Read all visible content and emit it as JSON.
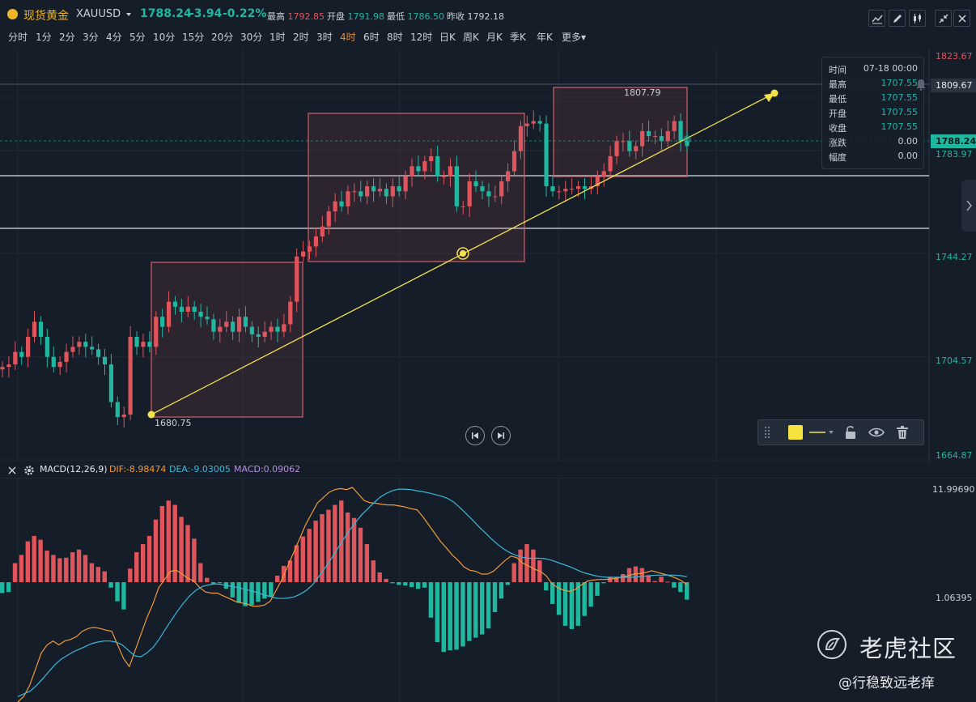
{
  "header": {
    "name": "现货黄金",
    "symbol": "XAUUSD",
    "price": "1788.24",
    "change": "-3.94",
    "percent": "-0.22%",
    "high_label": "最高",
    "high": "1792.85",
    "open_label": "开盘",
    "open": "1791.98",
    "low_label": "最低",
    "low": "1786.50",
    "prev_label": "昨收",
    "prev": "1792.18"
  },
  "timeframes": [
    "分时",
    "1分",
    "2分",
    "3分",
    "4分",
    "5分",
    "10分",
    "15分",
    "20分",
    "30分",
    "1时",
    "2时",
    "3时",
    "4时",
    "6时",
    "8时",
    "12时",
    "日K",
    "周K",
    "月K",
    "季K",
    "年K",
    "更多"
  ],
  "active_timeframe": "4时",
  "tooltip": {
    "rows": [
      {
        "k": "时间",
        "v": "07-18 00:00"
      },
      {
        "k": "最高",
        "v": "1707.55"
      },
      {
        "k": "最低",
        "v": "1707.55"
      },
      {
        "k": "开盘",
        "v": "1707.55"
      },
      {
        "k": "收盘",
        "v": "1707.55"
      },
      {
        "k": "涨跌",
        "v": "0.00"
      },
      {
        "k": "幅度",
        "v": "0.00"
      }
    ]
  },
  "price_axis": {
    "top": "1823.67",
    "crosshair": "1809.67",
    "current": "1788.24",
    "l1": "1783.97",
    "l2": "1744.27",
    "l3": "1704.57",
    "bottom": "1664.87"
  },
  "annotations": {
    "low_mark": "1680.75",
    "high_mark": "1807.79"
  },
  "macd": {
    "title": "MACD(12,26,9)",
    "dif": "DIF:-8.98474",
    "dea": "DEA:-9.03005",
    "macd": "MACD:0.09062",
    "axis_top": "11.99690",
    "axis_mid": "1.06395"
  },
  "watermark": {
    "brand": "老虎社区",
    "user": "@行稳致远老痒"
  },
  "colors": {
    "up": "#e0555c",
    "down": "#1fb7a0",
    "dif": "#f29a3b",
    "dea": "#3bb8d9",
    "trendline": "#f2e14c",
    "box_border": "#d2626a"
  },
  "chart_data": {
    "type": "candlestick",
    "price_ylim": [
      1664.87,
      1823.67
    ],
    "closes": [
      1700,
      1701,
      1706,
      1704,
      1712,
      1718,
      1712,
      1704,
      1700,
      1702,
      1706,
      1708,
      1710,
      1708,
      1707,
      1704,
      1701,
      1686,
      1680,
      1681,
      1712,
      1708,
      1710,
      1708,
      1720,
      1716,
      1726,
      1724,
      1722,
      1724,
      1722,
      1720,
      1719,
      1714,
      1716,
      1718,
      1714,
      1720,
      1716,
      1713,
      1712,
      1714,
      1716,
      1714,
      1717,
      1726,
      1744,
      1746,
      1748,
      1752,
      1756,
      1762,
      1766,
      1764,
      1770,
      1770,
      1768,
      1772,
      1770,
      1771,
      1768,
      1772,
      1770,
      1776,
      1780,
      1778,
      1782,
      1784,
      1776,
      1776,
      1780,
      1764,
      1764,
      1774,
      1772,
      1770,
      1768,
      1768,
      1774,
      1778,
      1786,
      1796,
      1797,
      1798,
      1797,
      1772,
      1770,
      1770,
      1771,
      1771,
      1772,
      1771,
      1772,
      1776,
      1778,
      1784,
      1790,
      1790,
      1786,
      1788,
      1794,
      1792,
      1792,
      1790,
      1794,
      1798,
      1790,
      1788
    ],
    "macd_ylim": [
      -22,
      18
    ],
    "macd_hist": [
      -2.0,
      -1.8,
      3.5,
      5.0,
      7.5,
      8.5,
      7.8,
      5.8,
      5.0,
      4.4,
      4.5,
      5.5,
      6.0,
      5.0,
      3.5,
      2.8,
      2.0,
      -1.0,
      -3.5,
      -5.0,
      2.5,
      5.5,
      7.0,
      8.5,
      11.5,
      14.0,
      15.0,
      14.2,
      12.0,
      10.5,
      8.0,
      3.5,
      0.8,
      -0.3,
      -0.2,
      -1.2,
      -2.8,
      -3.8,
      -4.4,
      -4.2,
      -3.6,
      -3.0,
      -2.6,
      1.2,
      3.0,
      4.0,
      6.8,
      8.4,
      9.8,
      11.3,
      12.5,
      13.3,
      14.2,
      15.0,
      12.8,
      11.8,
      10.0,
      7.0,
      4.0,
      1.8,
      0.6,
      -0.2,
      -0.5,
      -0.6,
      -0.9,
      -1.2,
      -1.0,
      -6.5,
      -11.0,
      -12.8,
      -12.5,
      -12.4,
      -11.8,
      -10.8,
      -10.2,
      -9.6,
      -8.5,
      -5.5,
      -3.0,
      -0.5,
      3.5,
      6.0,
      7.0,
      6.0,
      4.0,
      -1.5,
      -4.0,
      -6.0,
      -8.0,
      -8.6,
      -8.0,
      -6.2,
      -4.5,
      -2.5,
      -0.2,
      1.0,
      1.0,
      1.5,
      2.6,
      2.9,
      2.6,
      1.3,
      0.2,
      1.0,
      0.1,
      -1.0,
      -1.8,
      -3.2
    ],
    "dif": [
      -22,
      -21,
      -19,
      -16,
      -13,
      -11.5,
      -10.8,
      -11.5,
      -10.8,
      -10.5,
      -10,
      -9,
      -8.5,
      -8.3,
      -8.5,
      -8.8,
      -9,
      -11.5,
      -14,
      -15.5,
      -12.5,
      -9.5,
      -6.5,
      -4,
      -1,
      0.5,
      2,
      2.2,
      1.5,
      0.7,
      0.2,
      -1,
      -1.8,
      -2,
      -2,
      -2.5,
      -3,
      -3.5,
      -3.8,
      -4,
      -4.4,
      -4.4,
      -4.2,
      -3.5,
      -1.5,
      0.5,
      3,
      5.5,
      8,
      10.5,
      12.5,
      14.5,
      15.5,
      16.5,
      17,
      17.2,
      17,
      17.4,
      16.2,
      15,
      14.6,
      14.5,
      14.3,
      14.2,
      14.2,
      14,
      13.8,
      13.5,
      13.3,
      12,
      10.5,
      9,
      7.5,
      6.3,
      5,
      4,
      2.8,
      2.2,
      2,
      1.5,
      1.5,
      2,
      3,
      4,
      4.8,
      4.5,
      3.5,
      3,
      2.4,
      2,
      1.2,
      -0.3,
      -1,
      -1.5,
      -1.7,
      -1.3,
      -0.5,
      0.2,
      0.4,
      0.5,
      0.5,
      0.6,
      0.7,
      1,
      1.2,
      1.5,
      1.6,
      1.8,
      2.1,
      1.8,
      1.5,
      1.2,
      0.8,
      0.3,
      -0.5
    ],
    "dea": [
      -21,
      -20.5,
      -20,
      -19,
      -17.8,
      -16.5,
      -15.2,
      -14.2,
      -13.5,
      -12.8,
      -12.3,
      -11.8,
      -11.3,
      -11,
      -10.8,
      -10.8,
      -11,
      -11.5,
      -12.5,
      -13.5,
      -13.7,
      -13,
      -12,
      -10.5,
      -8.7,
      -7,
      -5.3,
      -3.8,
      -2.5,
      -1.5,
      -0.8,
      -0.5,
      -0.3,
      -0.4,
      -0.6,
      -0.8,
      -1,
      -1.3,
      -1.6,
      -1.9,
      -2.3,
      -2.6,
      -2.9,
      -3,
      -2.9,
      -2.7,
      -2.2,
      -1.5,
      -0.5,
      1,
      2.6,
      4.2,
      6,
      7.8,
      9.5,
      11,
      12.4,
      13.5,
      14.6,
      15.6,
      16.3,
      16.8,
      17.1,
      17.1,
      17,
      16.8,
      16.6,
      16.4,
      16.1,
      15.8,
      15.4,
      14.7,
      13.7,
      12.6,
      11.5,
      10.3,
      9.2,
      8.1,
      7.1,
      6.2,
      5.5,
      5,
      4.6,
      4.4,
      4.4,
      4.4,
      4.3,
      4,
      3.6,
      3.2,
      2.8,
      2.3,
      1.8,
      1.5,
      1.2,
      1,
      0.9,
      0.9,
      0.9,
      0.9,
      0.9,
      1,
      1.1,
      1.2,
      1.3,
      1.3,
      1.3,
      1.3,
      1.2,
      1.0
    ]
  }
}
